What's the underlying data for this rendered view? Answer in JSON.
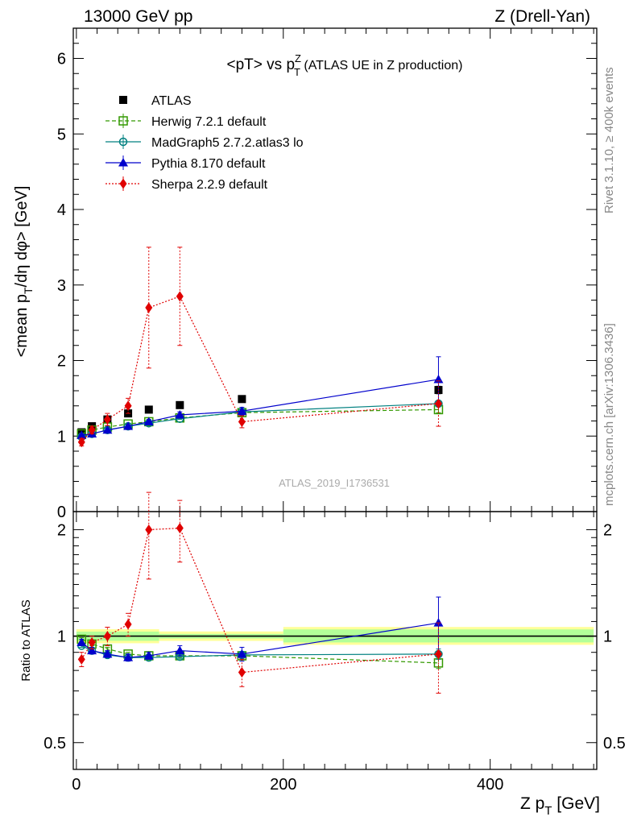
{
  "header": {
    "left": "13000 GeV pp",
    "right": "Z (Drell-Yan)"
  },
  "side_labels": {
    "rivet": "Rivet 3.1.10, ≥ 400k events",
    "mcplots": "mcplots.cern.ch [arXiv:1306.3436]"
  },
  "watermark": "ATLAS_2019_I1736531",
  "chart_data": [
    {
      "type": "scatter",
      "title_main": "<pT> vs p",
      "title_sup": "Z",
      "title_sub": "T",
      "title_rest": " (ATLAS UE in Z production)",
      "ylabel_a": "<mean p",
      "ylabel_sub": "T",
      "ylabel_b": "/dη dφ> [GeV]",
      "xlim": [
        -3,
        503
      ],
      "ylim": [
        0,
        6.4
      ],
      "yticks": [
        0,
        1,
        2,
        3,
        4,
        5,
        6
      ],
      "ytick_labels": [
        "0",
        "1",
        "2",
        "3",
        "4",
        "5",
        "6"
      ],
      "legend_position": "top-left",
      "series": [
        {
          "name": "ATLAS",
          "color": "#000000",
          "marker": "square-filled",
          "line": "none",
          "x": [
            5,
            15,
            30,
            50,
            70,
            100,
            160,
            350
          ],
          "y": [
            1.05,
            1.13,
            1.22,
            1.3,
            1.35,
            1.41,
            1.49,
            1.61
          ],
          "err": [
            0.02,
            0.02,
            0.02,
            0.02,
            0.02,
            0.02,
            0.03,
            0.05
          ]
        },
        {
          "name": "Herwig 7.2.1 default",
          "color": "#339900",
          "marker": "square-open",
          "line": "dashed",
          "x": [
            5,
            15,
            30,
            50,
            70,
            100,
            160,
            350
          ],
          "y": [
            1.03,
            1.08,
            1.12,
            1.16,
            1.19,
            1.24,
            1.31,
            1.35
          ],
          "err": [
            0.01,
            0.01,
            0.01,
            0.01,
            0.01,
            0.01,
            0.02,
            0.04
          ]
        },
        {
          "name": "MadGraph5 2.7.2.atlas3 lo",
          "color": "#008080",
          "marker": "circle-open",
          "line": "solid",
          "x": [
            5,
            15,
            30,
            50,
            70,
            100,
            160,
            350
          ],
          "y": [
            0.99,
            1.03,
            1.08,
            1.13,
            1.17,
            1.23,
            1.32,
            1.43
          ],
          "err": [
            0.01,
            0.01,
            0.01,
            0.01,
            0.01,
            0.01,
            0.02,
            0.04
          ]
        },
        {
          "name": "Pythia 8.170 default",
          "color": "#0000cc",
          "marker": "triangle-filled",
          "line": "solid",
          "x": [
            5,
            15,
            30,
            50,
            70,
            100,
            160,
            350
          ],
          "y": [
            1.01,
            1.03,
            1.08,
            1.13,
            1.19,
            1.28,
            1.33,
            1.75
          ],
          "err": [
            0.02,
            0.02,
            0.02,
            0.02,
            0.03,
            0.04,
            0.05,
            0.3
          ]
        },
        {
          "name": "Sherpa 2.2.9 default",
          "color": "#e00000",
          "marker": "diamond-filled",
          "line": "dotted",
          "x": [
            5,
            15,
            30,
            50,
            70,
            100,
            160,
            350
          ],
          "y": [
            0.92,
            1.08,
            1.22,
            1.4,
            2.7,
            2.85,
            1.19,
            1.43
          ],
          "err": [
            0.05,
            0.05,
            0.08,
            0.1,
            0.8,
            0.65,
            0.08,
            0.3
          ]
        }
      ]
    },
    {
      "type": "scatter",
      "ylabel": "Ratio to ATLAS",
      "xlabel_a": "Z p",
      "xlabel_sub": "T",
      "xlabel_b": " [GeV]",
      "xlim": [
        -3,
        503
      ],
      "ylim": [
        0.42,
        2.25
      ],
      "y_scale": "log",
      "xticks": [
        0,
        200,
        400
      ],
      "xtick_labels": [
        "0",
        "200",
        "400"
      ],
      "yticks": [
        0.5,
        1,
        2
      ],
      "ytick_labels": [
        "0.5",
        "1",
        "2"
      ],
      "reference_band": [
        {
          "x0": 0,
          "x1": 80,
          "lo": 0.97,
          "hi": 1.03
        },
        {
          "x0": 80,
          "x1": 200,
          "lo": 0.985,
          "hi": 1.015
        },
        {
          "x0": 200,
          "x1": 500,
          "lo": 0.96,
          "hi": 1.045
        }
      ],
      "series": [
        {
          "name": "Herwig 7.2.1 default",
          "color": "#339900",
          "marker": "square-open",
          "line": "dashed",
          "x": [
            5,
            15,
            30,
            50,
            70,
            100,
            160,
            350
          ],
          "y": [
            0.98,
            0.95,
            0.92,
            0.89,
            0.88,
            0.88,
            0.88,
            0.84
          ],
          "err": [
            0.01,
            0.01,
            0.01,
            0.01,
            0.01,
            0.01,
            0.02,
            0.03
          ]
        },
        {
          "name": "MadGraph5 2.7.2.atlas3 lo",
          "color": "#008080",
          "marker": "circle-open",
          "line": "solid",
          "x": [
            5,
            15,
            30,
            50,
            70,
            100,
            160,
            350
          ],
          "y": [
            0.94,
            0.91,
            0.885,
            0.87,
            0.87,
            0.875,
            0.885,
            0.89
          ],
          "err": [
            0.01,
            0.01,
            0.01,
            0.01,
            0.01,
            0.01,
            0.02,
            0.03
          ]
        },
        {
          "name": "Pythia 8.170 default",
          "color": "#0000cc",
          "marker": "triangle-filled",
          "line": "solid",
          "x": [
            5,
            15,
            30,
            50,
            70,
            100,
            160,
            350
          ],
          "y": [
            0.96,
            0.91,
            0.89,
            0.87,
            0.88,
            0.91,
            0.89,
            1.09
          ],
          "err": [
            0.02,
            0.02,
            0.02,
            0.02,
            0.02,
            0.03,
            0.04,
            0.2
          ]
        },
        {
          "name": "Sherpa 2.2.9 default",
          "color": "#e00000",
          "marker": "diamond-filled",
          "line": "dotted",
          "x": [
            5,
            15,
            30,
            50,
            70,
            100,
            160,
            350
          ],
          "y": [
            0.86,
            0.96,
            1.0,
            1.08,
            2.0,
            2.02,
            0.79,
            0.89
          ],
          "err": [
            0.04,
            0.04,
            0.06,
            0.08,
            0.55,
            0.4,
            0.07,
            0.2
          ]
        }
      ]
    }
  ]
}
